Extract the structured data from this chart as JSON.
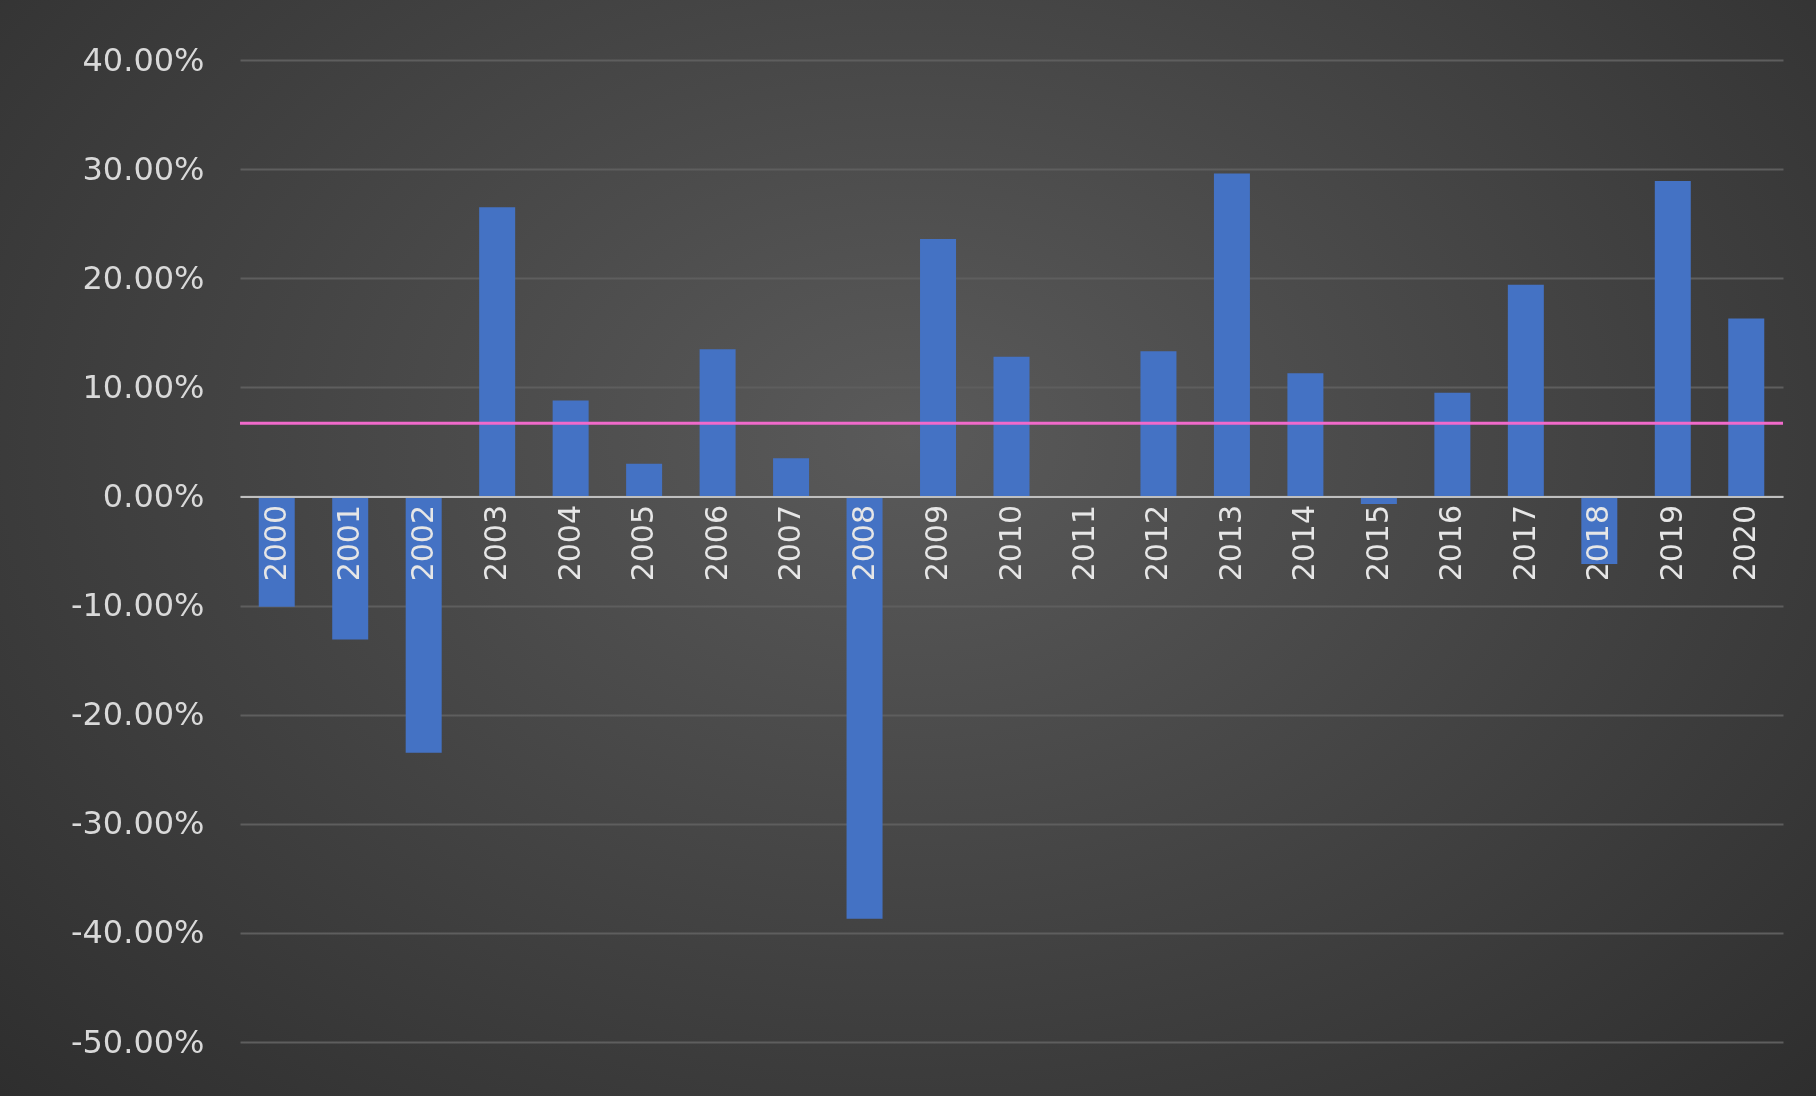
{
  "chart_data": {
    "type": "bar",
    "categories": [
      "2000",
      "2001",
      "2002",
      "2003",
      "2004",
      "2005",
      "2006",
      "2007",
      "2008",
      "2009",
      "2010",
      "2011",
      "2012",
      "2013",
      "2014",
      "2015",
      "2016",
      "2017",
      "2018",
      "2019",
      "2020"
    ],
    "values": [
      -10.1,
      -13.1,
      -23.5,
      26.5,
      8.8,
      3.0,
      13.5,
      3.5,
      -38.7,
      23.6,
      12.8,
      0.0,
      13.3,
      29.6,
      11.3,
      -0.7,
      9.5,
      19.4,
      -6.2,
      28.9,
      16.3
    ],
    "color": "#4472c4",
    "ylim": [
      -50,
      40
    ],
    "yticks": [
      {
        "value": -50,
        "label": "-50.00%"
      },
      {
        "value": -40,
        "label": "-40.00%"
      },
      {
        "value": -30,
        "label": "-30.00%"
      },
      {
        "value": -20,
        "label": "-20.00%"
      },
      {
        "value": -10,
        "label": "-10.00%"
      },
      {
        "value": 0,
        "label": "0.00%"
      },
      {
        "value": 10,
        "label": "10.00%"
      },
      {
        "value": 20,
        "label": "20.00%"
      },
      {
        "value": 30,
        "label": "30.00%"
      },
      {
        "value": 40,
        "label": "40.00%"
      }
    ],
    "grid": "y",
    "ref_lines": [
      {
        "axis": "y",
        "value": 6.7,
        "color": "#f06acb"
      }
    ]
  }
}
